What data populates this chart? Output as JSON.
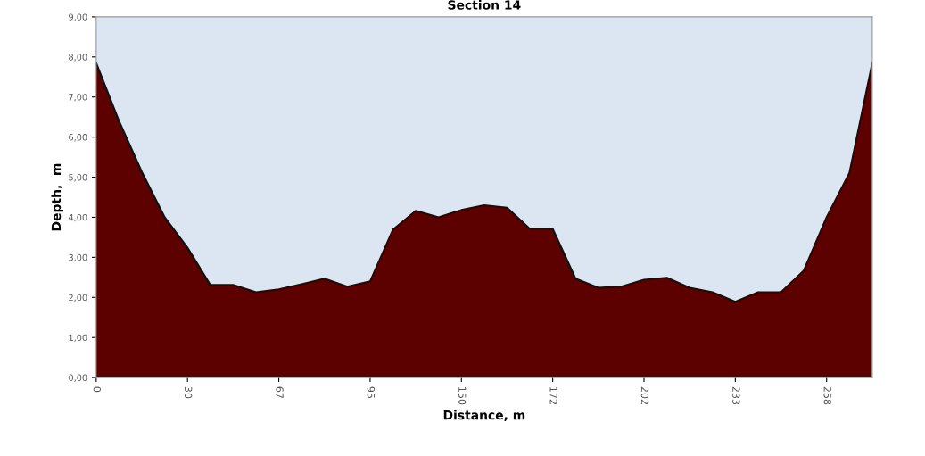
{
  "chart_data": {
    "type": "area",
    "title": "Section 14",
    "xlabel": "Distance, m",
    "ylabel": "Depth,  m",
    "categories": [
      "0",
      null,
      null,
      null,
      "30",
      null,
      null,
      null,
      "67",
      null,
      null,
      null,
      "95",
      null,
      null,
      null,
      "150",
      null,
      null,
      null,
      "172",
      null,
      null,
      null,
      "202",
      null,
      null,
      null,
      "233",
      null,
      null,
      null,
      "258",
      null,
      null
    ],
    "series": [
      {
        "color": "#5c0000",
        "values": [
          7.85,
          6.4,
          5.13,
          4.0,
          3.24,
          2.31,
          2.31,
          2.13,
          2.2,
          2.33,
          2.47,
          2.27,
          2.4,
          3.69,
          4.16,
          4.0,
          4.18,
          4.3,
          4.24,
          3.71,
          3.71,
          2.47,
          2.24,
          2.27,
          2.44,
          2.49,
          2.24,
          2.13,
          1.89,
          2.13,
          2.13,
          2.67,
          4.0,
          5.11,
          7.85
        ]
      }
    ],
    "ylim": [
      0,
      9
    ],
    "yticks": [
      {
        "value": 0,
        "label": "0,00"
      },
      {
        "value": 1,
        "label": "1,00"
      },
      {
        "value": 2,
        "label": "2,00"
      },
      {
        "value": 3,
        "label": "3,00"
      },
      {
        "value": 4,
        "label": "4,00"
      },
      {
        "value": 5,
        "label": "5,00"
      },
      {
        "value": 6,
        "label": "6,00"
      },
      {
        "value": 7,
        "label": "7,00"
      },
      {
        "value": 8,
        "label": "8,00"
      },
      {
        "value": 9,
        "label": "9,00"
      }
    ],
    "grid": false
  }
}
